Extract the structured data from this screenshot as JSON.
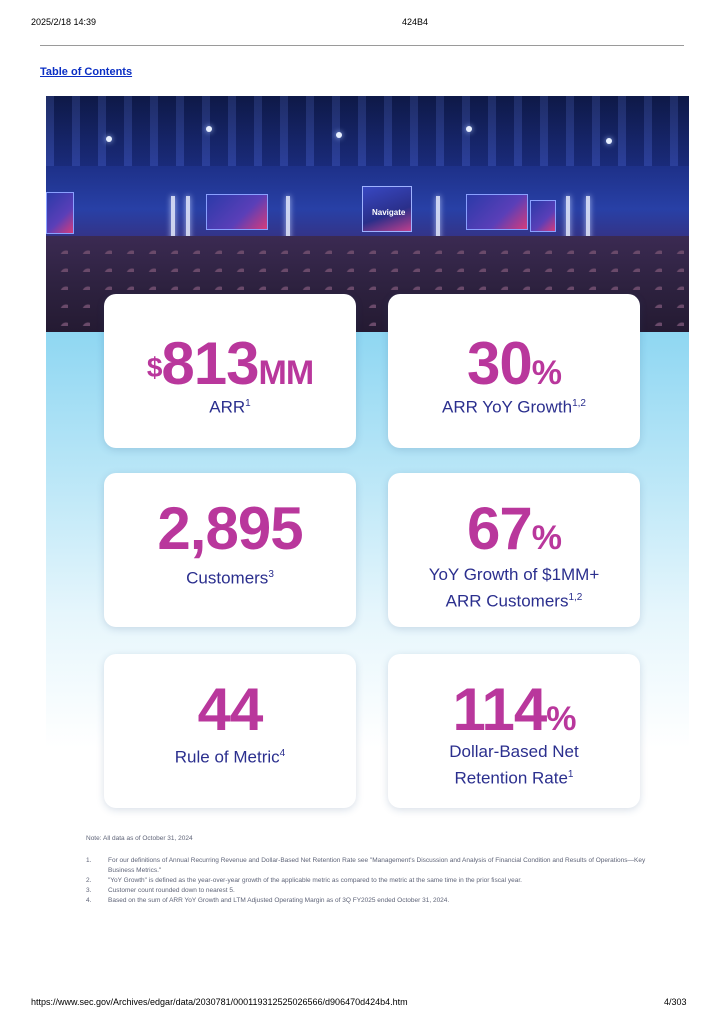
{
  "header": {
    "datetime": "2025/2/18 14:39",
    "doc_id": "424B4"
  },
  "toc_link": "Table of Contents",
  "photo": {
    "stage_screen_text": "Navigate"
  },
  "stats": [
    {
      "value": "813",
      "prefix": "$",
      "suffix": "MM",
      "label": "ARR",
      "label_line2": "",
      "sup": "1"
    },
    {
      "value": "30",
      "prefix": "",
      "suffix": "%",
      "label": "ARR YoY Growth",
      "label_line2": "",
      "sup": "1,2"
    },
    {
      "value": "2,895",
      "prefix": "",
      "suffix": "",
      "label": "Customers",
      "label_line2": "",
      "sup": "3"
    },
    {
      "value": "67",
      "prefix": "",
      "suffix": "%",
      "label": "YoY Growth of $1MM+",
      "label_line2": "ARR Customers",
      "sup": "1,2"
    },
    {
      "value": "44",
      "prefix": "",
      "suffix": "",
      "label": "Rule of Metric",
      "label_line2": "",
      "sup": "4"
    },
    {
      "value": "114",
      "prefix": "",
      "suffix": "%",
      "label": "Dollar-Based Net",
      "label_line2": "Retention Rate",
      "sup": "1"
    }
  ],
  "notes": {
    "title": "Note: All data as of October 31, 2024",
    "items": [
      {
        "num": "1.",
        "text": "For our definitions of Annual Recurring Revenue and Dollar-Based Net Retention Rate see \"Management's Discussion and Analysis of Financial Condition and Results of Operations—Key Business Metrics.\""
      },
      {
        "num": "2.",
        "text": "\"YoY Growth\" is defined as the year-over-year growth of the applicable metric as compared to the metric at the same time in the prior fiscal year."
      },
      {
        "num": "3.",
        "text": "Customer count rounded down to nearest 5."
      },
      {
        "num": "4.",
        "text": "Based on the sum of ARR YoY Growth and LTM Adjusted Operating Margin as of 3Q FY2025 ended October 31, 2024."
      }
    ]
  },
  "footer": {
    "url": "https://www.sec.gov/Archives/edgar/data/2030781/000119312525026566/d906470d424b4.htm",
    "page": "4/303"
  }
}
